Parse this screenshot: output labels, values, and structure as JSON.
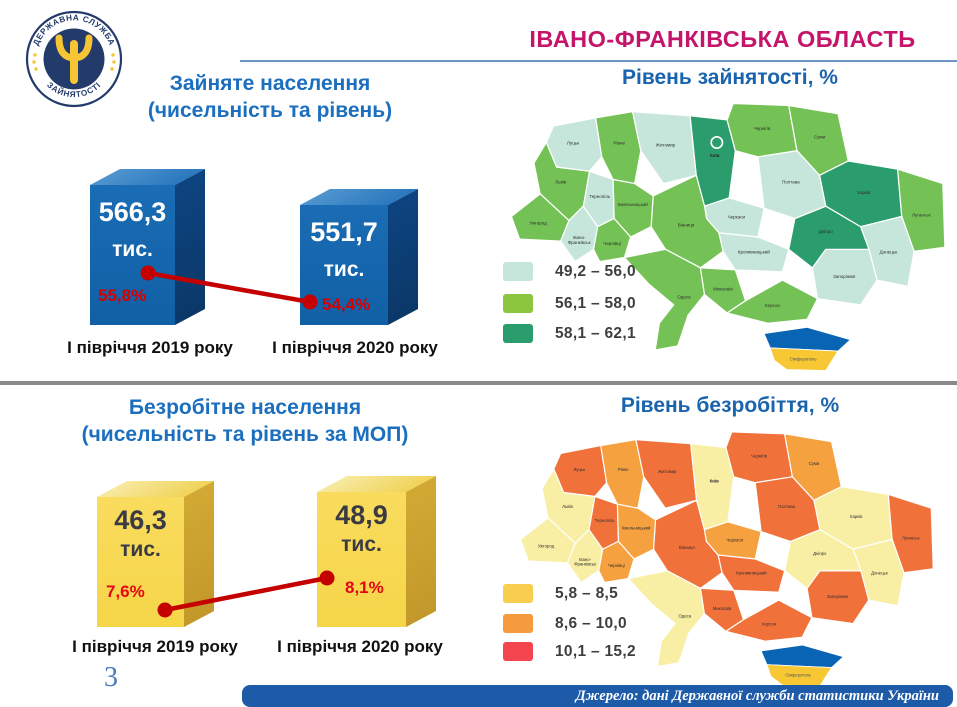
{
  "header": {
    "title": "ІВАНО-ФРАНКІВСЬКА ОБЛАСТЬ",
    "title_color": "#C5156B",
    "logo": {
      "ring_text_top": "ДЕРЖАВНА СЛУЖБА",
      "ring_text_bottom": "ЗАЙНЯТОСТІ",
      "navy": "#233B6B",
      "yellow": "#F7C433"
    }
  },
  "employment": {
    "heading_line1": "Зайняте населення",
    "heading_line2": "(чисельність та рівень)",
    "bar_color": "#1565AC",
    "bars": [
      {
        "value": "566,3",
        "unit": "тис.",
        "rate": "55,8%",
        "category": "І півріччя 2019 року"
      },
      {
        "value": "551,7",
        "unit": "тис.",
        "rate": "54,4%",
        "category": "І півріччя 2020 року"
      }
    ],
    "map": {
      "title": "Рівень зайнятості, %",
      "legend": [
        {
          "color": "#C6E6DC",
          "label": "49,2 – 56,0"
        },
        {
          "color": "#8CC63F",
          "label": "56,1 – 58,0"
        },
        {
          "color": "#2B9C6C",
          "label": "58,1 – 62,1"
        }
      ],
      "palette": {
        "low": "#C6E6DC",
        "mid": "#74C155",
        "high": "#2B9C6C"
      },
      "kyiv_ring": true,
      "regions": {
        "volyn": "low",
        "rivne": "mid",
        "zhytomyr": "low",
        "kyivobl": "high",
        "chernihiv": "mid",
        "sumy": "mid",
        "kharkiv": "high",
        "luhansk": "mid",
        "donetsk": "low",
        "zaporizhzhia": "low",
        "dnipro": "high",
        "poltava": "low",
        "cherkasy": "low",
        "kirovohrad": "low",
        "vinnytsia": "mid",
        "khmelnytskyi": "mid",
        "ternopil": "low",
        "lviv": "mid",
        "zakarpattia": "mid",
        "ivanofrankivsk": "low",
        "chernivtsi": "mid",
        "odesa": "mid",
        "mykolaiv": "mid",
        "kherson": "mid"
      }
    }
  },
  "unemployment": {
    "heading_line1": "Безробітне населення",
    "heading_line2": "(чисельність та рівень за МОП)",
    "bar_color": "#F9DA52",
    "bars": [
      {
        "value": "46,3",
        "unit": "тис.",
        "rate": "7,6%",
        "category": "І півріччя 2019 року"
      },
      {
        "value": "48,9",
        "unit": "тис.",
        "rate": "8,1%",
        "category": "І півріччя 2020 року"
      }
    ],
    "map": {
      "title": "Рівень безробіття, %",
      "legend": [
        {
          "color": "#F8CE4F",
          "label": "5,8 – 8,5"
        },
        {
          "color": "#F59B3D",
          "label": "8,6 – 10,0"
        },
        {
          "color": "#F4454F",
          "label": "10,1 – 15,2"
        }
      ],
      "palette": {
        "low": "#F8EFA5",
        "mid": "#F6A13F",
        "high": "#F1713B"
      },
      "kyiv_ring": false,
      "regions": {
        "volyn": "high",
        "rivne": "mid",
        "zhytomyr": "high",
        "kyivobl": "low",
        "chernihiv": "high",
        "sumy": "mid",
        "kharkiv": "low",
        "luhansk": "high",
        "donetsk": "low",
        "zaporizhzhia": "high",
        "dnipro": "low",
        "poltava": "high",
        "cherkasy": "mid",
        "kirovohrad": "high",
        "vinnytsia": "high",
        "khmelnytskyi": "mid",
        "ternopil": "high",
        "lviv": "low",
        "zakarpattia": "low",
        "ivanofrankivsk": "low",
        "chernivtsi": "mid",
        "odesa": "low",
        "mykolaiv": "high",
        "kherson": "high"
      }
    }
  },
  "map_labels": {
    "volyn": "Луцьк",
    "rivne": "Рівне",
    "zhytomyr": "Житомир",
    "kyivobl": "Київ",
    "chernihiv": "Чернігів",
    "sumy": "Суми",
    "kharkiv": "Харків",
    "luhansk": "Луганськ",
    "donetsk": "Донецьк",
    "zaporizhzhia": "Запоріжжя",
    "dnipro": "Дніпро",
    "poltava": "Полтава",
    "cherkasy": "Черкаси",
    "kirovohrad": "Кропивницький",
    "vinnytsia": "Вінниця",
    "khmelnytskyi": "Хмельницький",
    "ternopil": "Тернопіль",
    "lviv": "Львів",
    "zakarpattia": "Ужгород",
    "ivanofrankivsk": "Івано-Франківськ",
    "chernivtsi": "Чернівці",
    "odesa": "Одеса",
    "mykolaiv": "Миколаїв",
    "kherson": "Херсон",
    "crimea": "Сімферополь"
  },
  "crimea_colors": {
    "blue": "#0A64B4",
    "yellow": "#F7C833"
  },
  "footer": {
    "page_number": "3",
    "source": "Джерело: дані Державної служби статистики України"
  },
  "chart_data": [
    {
      "type": "bar",
      "title": "Зайняте населення (чисельність та рівень)",
      "categories": [
        "І півріччя 2019 року",
        "І півріччя 2020 року"
      ],
      "series": [
        {
          "name": "Зайняте населення, тис. осіб",
          "values": [
            566.3,
            551.7
          ]
        },
        {
          "name": "Рівень зайнятості, %",
          "values": [
            55.8,
            54.4
          ]
        }
      ],
      "bar_color": "#1565AC",
      "line_color": "#C40000"
    },
    {
      "type": "bar",
      "title": "Безробітне населення (чисельність та рівень за МОП)",
      "categories": [
        "І півріччя 2019 року",
        "І півріччя 2020 року"
      ],
      "series": [
        {
          "name": "Безробітне населення, тис. осіб",
          "values": [
            46.3,
            48.9
          ]
        },
        {
          "name": "Рівень безробіття за МОП, %",
          "values": [
            7.6,
            8.1
          ]
        }
      ],
      "bar_color": "#F9DA52",
      "line_color": "#C40000"
    },
    {
      "type": "heatmap",
      "title": "Рівень зайнятості, %",
      "legend_bins": [
        {
          "range": "49,2 – 56,0",
          "color": "#C6E6DC"
        },
        {
          "range": "56,1 – 58,0",
          "color": "#8CC63F"
        },
        {
          "range": "58,1 – 62,1",
          "color": "#2B9C6C"
        }
      ]
    },
    {
      "type": "heatmap",
      "title": "Рівень безробіття, %",
      "legend_bins": [
        {
          "range": "5,8 – 8,5",
          "color": "#F8CE4F"
        },
        {
          "range": "8,6 – 10,0",
          "color": "#F59B3D"
        },
        {
          "range": "10,1 – 15,2",
          "color": "#F4454F"
        }
      ]
    }
  ]
}
